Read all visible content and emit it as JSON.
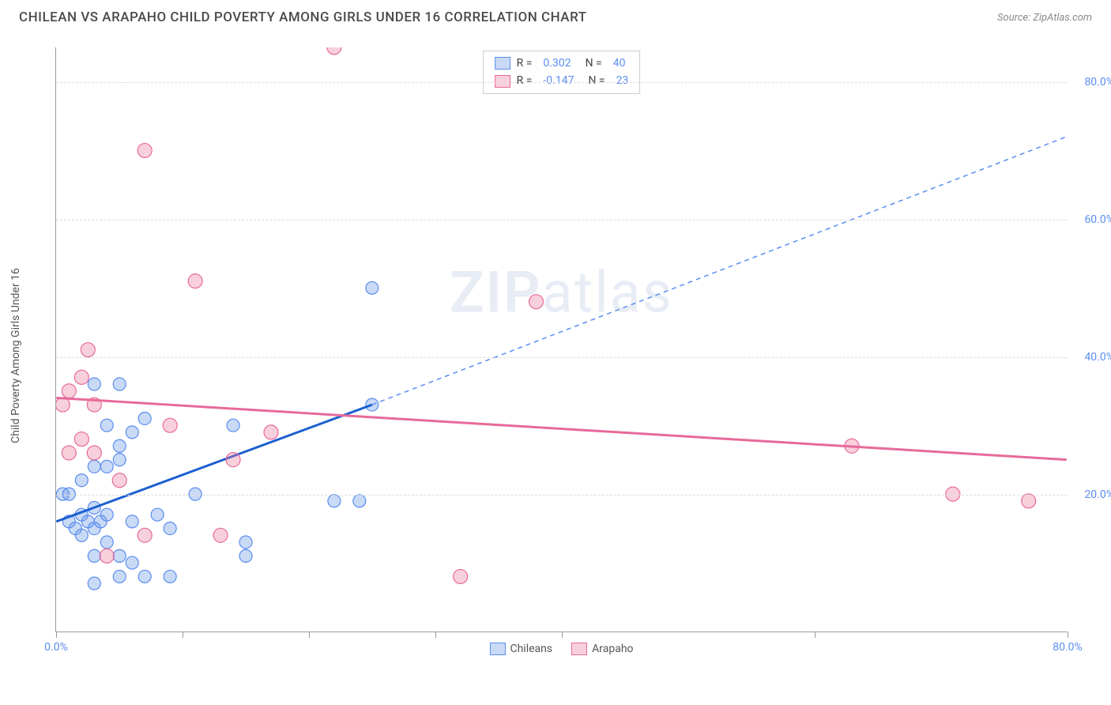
{
  "header": {
    "title": "CHILEAN VS ARAPAHO CHILD POVERTY AMONG GIRLS UNDER 16 CORRELATION CHART",
    "source": "Source: ZipAtlas.com"
  },
  "chart": {
    "type": "scatter",
    "y_label": "Child Poverty Among Girls Under 16",
    "xlim": [
      0,
      80
    ],
    "ylim": [
      0,
      85
    ],
    "x_ticks": [
      0,
      10,
      20,
      30,
      40,
      60,
      80
    ],
    "x_tick_labels": {
      "0": "0.0%",
      "80": "80.0%"
    },
    "y_gridlines": [
      20,
      40,
      60,
      80
    ],
    "y_tick_labels": {
      "20": "20.0%",
      "40": "40.0%",
      "60": "60.0%",
      "80": "80.0%"
    },
    "background_color": "#ffffff",
    "grid_color": "#dddddd",
    "axis_color": "#999999",
    "watermark": "ZIPatlas",
    "series": [
      {
        "name": "Chileans",
        "color_fill": "rgba(100,150,230,0.35)",
        "color_stroke": "#5b8def",
        "marker_radius": 8,
        "points": [
          [
            1,
            16
          ],
          [
            1.5,
            15
          ],
          [
            2,
            17
          ],
          [
            2,
            14
          ],
          [
            2.5,
            16
          ],
          [
            3,
            15
          ],
          [
            3,
            18
          ],
          [
            3.5,
            16
          ],
          [
            0.5,
            20
          ],
          [
            1,
            20
          ],
          [
            4,
            17
          ],
          [
            2,
            22
          ],
          [
            3,
            24
          ],
          [
            4,
            24
          ],
          [
            5,
            25
          ],
          [
            5,
            27
          ],
          [
            6,
            29
          ],
          [
            4,
            30
          ],
          [
            7,
            31
          ],
          [
            5,
            36
          ],
          [
            3,
            36
          ],
          [
            6,
            16
          ],
          [
            8,
            17
          ],
          [
            9,
            15
          ],
          [
            4,
            13
          ],
          [
            5,
            11
          ],
          [
            6,
            10
          ],
          [
            5,
            8
          ],
          [
            7,
            8
          ],
          [
            9,
            8
          ],
          [
            3,
            7
          ],
          [
            3,
            11
          ],
          [
            14,
            30
          ],
          [
            15,
            13
          ],
          [
            15,
            11
          ],
          [
            11,
            20
          ],
          [
            22,
            19
          ],
          [
            24,
            19
          ],
          [
            25,
            50
          ],
          [
            25,
            33
          ]
        ],
        "trend": {
          "x1": 0,
          "y1": 16,
          "x2": 25,
          "y2": 33,
          "solid": true,
          "color": "#1a5fd0",
          "width": 3
        },
        "trend_ext": {
          "x1": 25,
          "y1": 33,
          "x2": 80,
          "y2": 72,
          "solid": false,
          "color": "#5b8def",
          "width": 1.5
        }
      },
      {
        "name": "Arapaho",
        "color_fill": "rgba(235,120,155,0.35)",
        "color_stroke": "#e76a9b",
        "marker_radius": 9,
        "points": [
          [
            0.5,
            33
          ],
          [
            1,
            35
          ],
          [
            2,
            28
          ],
          [
            2,
            37
          ],
          [
            2.5,
            41
          ],
          [
            3,
            26
          ],
          [
            3,
            33
          ],
          [
            1,
            26
          ],
          [
            5,
            22
          ],
          [
            7,
            70
          ],
          [
            7,
            14
          ],
          [
            4,
            11
          ],
          [
            9,
            30
          ],
          [
            11,
            51
          ],
          [
            13,
            14
          ],
          [
            17,
            29
          ],
          [
            14,
            25
          ],
          [
            22,
            85
          ],
          [
            32,
            8
          ],
          [
            38,
            48
          ],
          [
            63,
            27
          ],
          [
            71,
            20
          ],
          [
            77,
            19
          ]
        ],
        "trend": {
          "x1": 0,
          "y1": 34,
          "x2": 80,
          "y2": 25,
          "solid": true,
          "color": "#e76a9b",
          "width": 3
        }
      }
    ],
    "stats_legend": [
      {
        "swatch_fill": "rgba(100,150,230,0.35)",
        "swatch_stroke": "#5b8def",
        "r": "0.302",
        "n": "40"
      },
      {
        "swatch_fill": "rgba(235,120,155,0.35)",
        "swatch_stroke": "#e76a9b",
        "r": "-0.147",
        "n": "23"
      }
    ],
    "bottom_legend": [
      {
        "label": "Chileans",
        "fill": "rgba(100,150,230,0.35)",
        "stroke": "#5b8def"
      },
      {
        "label": "Arapaho",
        "fill": "rgba(235,120,155,0.35)",
        "stroke": "#e76a9b"
      }
    ]
  }
}
